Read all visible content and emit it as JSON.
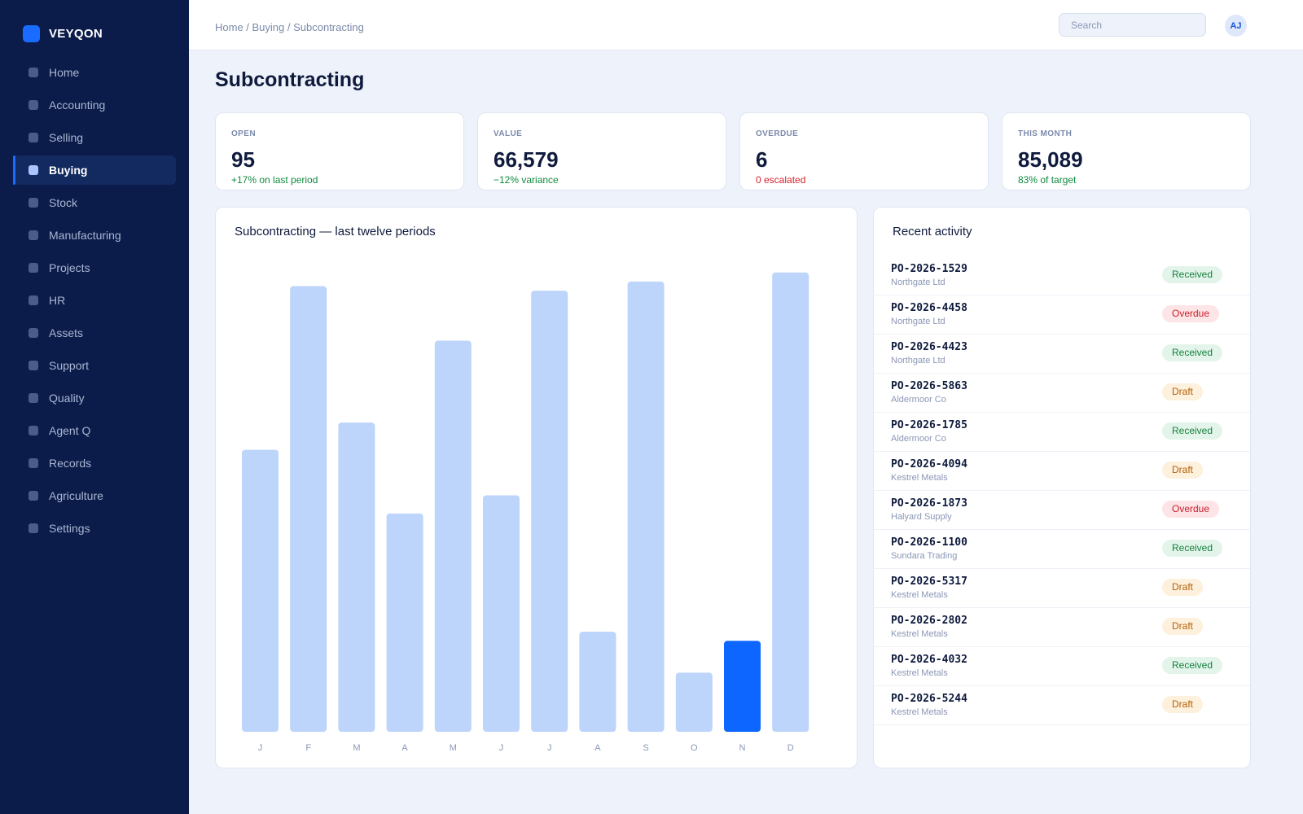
{
  "brand": {
    "name": "VEYQON",
    "accent": "#1a6bff"
  },
  "sidebar": {
    "items": [
      {
        "label": "Home",
        "active": false
      },
      {
        "label": "Accounting",
        "active": false
      },
      {
        "label": "Selling",
        "active": false
      },
      {
        "label": "Buying",
        "active": true
      },
      {
        "label": "Stock",
        "active": false
      },
      {
        "label": "Manufacturing",
        "active": false
      },
      {
        "label": "Projects",
        "active": false
      },
      {
        "label": "HR",
        "active": false
      },
      {
        "label": "Assets",
        "active": false
      },
      {
        "label": "Support",
        "active": false
      },
      {
        "label": "Quality",
        "active": false
      },
      {
        "label": "Agent Q",
        "active": false
      },
      {
        "label": "Records",
        "active": false
      },
      {
        "label": "Agriculture",
        "active": false
      },
      {
        "label": "Settings",
        "active": false
      }
    ]
  },
  "header": {
    "breadcrumb": "Home / Buying / Subcontracting",
    "search_placeholder": "Search",
    "avatar_initials": "AJ"
  },
  "page": {
    "title": "Subcontracting"
  },
  "kpis": [
    {
      "label": "OPEN",
      "value": "95",
      "sub": "+17% on last period",
      "tone": "positive"
    },
    {
      "label": "VALUE",
      "value": "66,579",
      "sub": "−12% variance",
      "tone": "positive"
    },
    {
      "label": "OVERDUE",
      "value": "6",
      "sub": "0 escalated",
      "tone": "negative"
    },
    {
      "label": "THIS MONTH",
      "value": "85,089",
      "sub": "83% of target",
      "tone": "positive"
    }
  ],
  "chart": {
    "title": "Subcontracting — last twelve periods"
  },
  "chart_data": {
    "type": "bar",
    "categories": [
      "J",
      "F",
      "M",
      "A",
      "M",
      "J",
      "J",
      "A",
      "S",
      "O",
      "N",
      "D"
    ],
    "values": [
      62,
      98,
      68,
      48,
      86,
      52,
      97,
      22,
      99,
      13,
      20,
      101
    ],
    "highlight_index": 10,
    "ylim": [
      0,
      104
    ],
    "grid": false,
    "colors": {
      "bar": "#bdd4fb",
      "highlight": "#0d66ff",
      "tick": "#8a97b5"
    }
  },
  "activity": {
    "title": "Recent activity",
    "items": [
      {
        "id": "PO-2026-1529",
        "vendor": "Northgate Ltd",
        "status": "Received"
      },
      {
        "id": "PO-2026-4458",
        "vendor": "Northgate Ltd",
        "status": "Overdue"
      },
      {
        "id": "PO-2026-4423",
        "vendor": "Northgate Ltd",
        "status": "Received"
      },
      {
        "id": "PO-2026-5863",
        "vendor": "Aldermoor Co",
        "status": "Draft"
      },
      {
        "id": "PO-2026-1785",
        "vendor": "Aldermoor Co",
        "status": "Received"
      },
      {
        "id": "PO-2026-4094",
        "vendor": "Kestrel Metals",
        "status": "Draft"
      },
      {
        "id": "PO-2026-1873",
        "vendor": "Halyard Supply",
        "status": "Overdue"
      },
      {
        "id": "PO-2026-1100",
        "vendor": "Sundara Trading",
        "status": "Received"
      },
      {
        "id": "PO-2026-5317",
        "vendor": "Kestrel Metals",
        "status": "Draft"
      },
      {
        "id": "PO-2026-2802",
        "vendor": "Kestrel Metals",
        "status": "Draft"
      },
      {
        "id": "PO-2026-4032",
        "vendor": "Kestrel Metals",
        "status": "Received"
      },
      {
        "id": "PO-2026-5244",
        "vendor": "Kestrel Metals",
        "status": "Draft"
      }
    ]
  }
}
